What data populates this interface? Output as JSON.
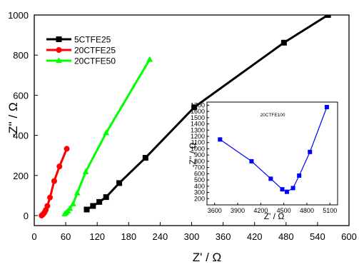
{
  "chart_data": [
    {
      "type": "line",
      "xlabel": "Z' / Ω",
      "ylabel": "-Z'' / Ω",
      "xlim": [
        0,
        600
      ],
      "ylim": [
        -50,
        1000
      ],
      "xticks": [
        "0",
        "60",
        "120",
        "180",
        "240",
        "300",
        "360",
        "420",
        "480",
        "540",
        "600"
      ],
      "yticks": [
        "0",
        "200",
        "400",
        "600",
        "800",
        "1000"
      ],
      "legend_position": "top-left",
      "series": [
        {
          "name": "5CTFE25",
          "color": "#000000",
          "marker": "square",
          "x": [
            100,
            112,
            124,
            137,
            162,
            212,
            305,
            476,
            560
          ],
          "y": [
            30,
            48,
            68,
            92,
            162,
            288,
            540,
            862,
            1000
          ]
        },
        {
          "name": "20CTFE25",
          "color": "#ff0000",
          "marker": "circle",
          "x": [
            14,
            16,
            18,
            20,
            22,
            25,
            30,
            38,
            48,
            62
          ],
          "y": [
            0,
            5,
            10,
            18,
            28,
            48,
            90,
            172,
            245,
            333
          ]
        },
        {
          "name": "20CTFE50",
          "color": "#00ff00",
          "marker": "triangle",
          "x": [
            58,
            61,
            64,
            68,
            74,
            82,
            98,
            137,
            220
          ],
          "y": [
            8,
            14,
            22,
            35,
            58,
            112,
            218,
            412,
            778
          ]
        }
      ]
    },
    {
      "type": "line",
      "annotation": "20CTFE100",
      "xlabel": "Z' / Ω",
      "ylabel": "-Z'' / Ω",
      "xlim": [
        3500,
        5200
      ],
      "ylim": [
        100,
        1750
      ],
      "xticks": [
        "3600",
        "3900",
        "4200",
        "4500",
        "4800",
        "5100"
      ],
      "yticks": [
        "200",
        "300",
        "400",
        "500",
        "600",
        "700",
        "800",
        "900",
        "1000",
        "1100",
        "1200",
        "1300",
        "1400",
        "1500",
        "1600",
        "1700"
      ],
      "series": [
        {
          "name": "",
          "color": "#0000ff",
          "marker": "square",
          "x": [
            3670,
            4080,
            4330,
            4480,
            4540,
            4620,
            4700,
            4840,
            5060
          ],
          "y": [
            1150,
            800,
            520,
            350,
            310,
            370,
            570,
            950,
            1670
          ]
        }
      ]
    }
  ]
}
